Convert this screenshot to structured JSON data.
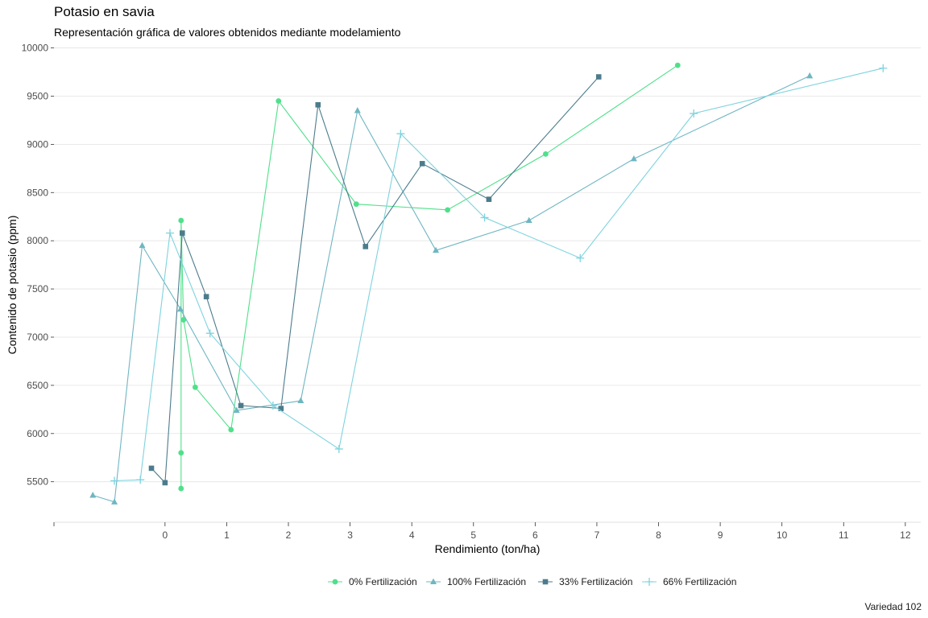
{
  "chart_data": {
    "type": "line",
    "title": "Potasio en savia",
    "subtitle": "Representación gráfica de valores obtenidos mediante modelamiento",
    "xlabel": "Rendimiento (ton/ha)",
    "ylabel": "Contenido de potasio (ppm)",
    "caption": "Variedad 102",
    "xlim": [
      -1.8,
      12.25
    ],
    "ylim": [
      5080,
      10080
    ],
    "xticks": [
      0,
      1,
      2,
      3,
      4,
      5,
      6,
      7,
      8,
      9,
      10,
      11,
      12
    ],
    "yticks": [
      5500,
      6000,
      6500,
      7000,
      7500,
      8000,
      8500,
      9000,
      9500,
      10000
    ],
    "grid": true,
    "legend_position": "bottom",
    "series": [
      {
        "name": "0% Fertilización",
        "color": "#4fe08a",
        "marker": "circle",
        "points": [
          [
            0.26,
            5430
          ],
          [
            0.26,
            5800
          ],
          [
            0.26,
            8210
          ],
          [
            0.3,
            7180
          ],
          [
            0.49,
            6480
          ],
          [
            1.07,
            6040
          ],
          [
            1.84,
            9450
          ],
          [
            3.1,
            8380
          ],
          [
            4.58,
            8320
          ],
          [
            6.17,
            8900
          ],
          [
            8.31,
            9820
          ]
        ]
      },
      {
        "name": "100% Fertilización",
        "color": "#6fb6c2",
        "marker": "triangle",
        "points": [
          [
            -1.17,
            5360
          ],
          [
            -0.82,
            5290
          ],
          [
            -0.37,
            7950
          ],
          [
            0.25,
            7290
          ],
          [
            1.16,
            6240
          ],
          [
            2.2,
            6340
          ],
          [
            3.12,
            9350
          ],
          [
            4.39,
            7900
          ],
          [
            5.9,
            8210
          ],
          [
            7.6,
            8850
          ],
          [
            10.45,
            9710
          ]
        ]
      },
      {
        "name": "33% Fertilización",
        "color": "#4c7c8c",
        "marker": "square",
        "points": [
          [
            -0.22,
            5640
          ],
          [
            0.0,
            5490
          ],
          [
            0.28,
            8080
          ],
          [
            0.67,
            7420
          ],
          [
            1.23,
            6290
          ],
          [
            1.88,
            6260
          ],
          [
            2.48,
            9410
          ],
          [
            3.25,
            7940
          ],
          [
            4.17,
            8800
          ],
          [
            5.25,
            8430
          ],
          [
            7.03,
            9700
          ]
        ]
      },
      {
        "name": "66% Fertilización",
        "color": "#7ed3df",
        "marker": "plus",
        "points": [
          [
            -0.82,
            5510
          ],
          [
            -0.4,
            5520
          ],
          [
            0.08,
            8080
          ],
          [
            0.73,
            7040
          ],
          [
            1.75,
            6290
          ],
          [
            2.82,
            5840
          ],
          [
            3.82,
            9110
          ],
          [
            5.18,
            8240
          ],
          [
            6.73,
            7820
          ],
          [
            8.57,
            9320
          ],
          [
            11.64,
            9790
          ]
        ]
      }
    ]
  }
}
